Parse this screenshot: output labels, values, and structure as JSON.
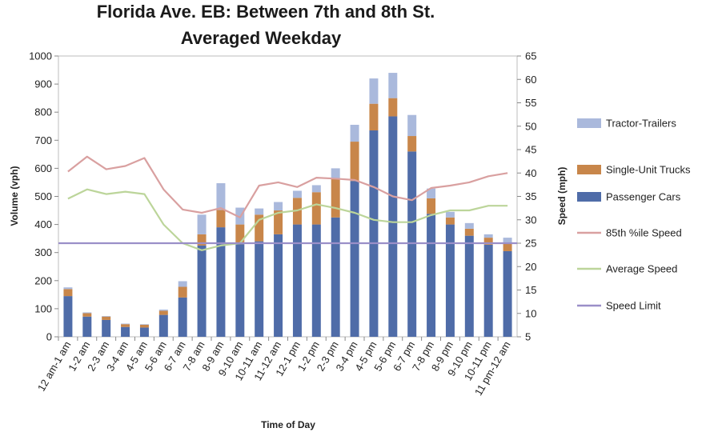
{
  "chart_data": {
    "type": "bar",
    "title_line1": "Florida Ave. EB: Between 7th and 8th St.",
    "title_line2": "Averaged Weekday",
    "xlabel": "Time of Day",
    "ylabel": "Volume (vph)",
    "y2label": "Speed (mph)",
    "ylim": [
      0,
      1000
    ],
    "y_ticks": [
      "0",
      "100",
      "200",
      "300",
      "400",
      "500",
      "600",
      "700",
      "800",
      "900",
      "1000"
    ],
    "y2lim": [
      5,
      65
    ],
    "y2_ticks": [
      "5",
      "10",
      "15",
      "20",
      "25",
      "30",
      "35",
      "40",
      "45",
      "50",
      "55",
      "60",
      "65"
    ],
    "grid": false,
    "legend_position": "right",
    "categories": [
      "12 am-1 am",
      "1-2 am",
      "2-3 am",
      "3-4 am",
      "4-5 am",
      "5-6 am",
      "6-7 am",
      "7-8 am",
      "8-9 am",
      "9-10 am",
      "10-11 am",
      "11-12 am",
      "12-1 pm",
      "1-2 pm",
      "2-3 pm",
      "3-4 pm",
      "4-5 pm",
      "5-6 pm",
      "6-7 pm",
      "7-8 pm",
      "8-9 pm",
      "9-10 pm",
      "10-11 pm",
      "11 pm-12 am"
    ],
    "series": [
      {
        "name": "Tractor-Trailers",
        "kind": "stack",
        "color": "#aab9dc",
        "values": [
          6,
          3,
          2,
          2,
          2,
          4,
          20,
          70,
          95,
          60,
          22,
          30,
          25,
          25,
          35,
          60,
          90,
          90,
          75,
          35,
          20,
          20,
          12,
          18
        ]
      },
      {
        "name": "Single-Unit Trucks",
        "kind": "stack",
        "color": "#c8864a",
        "values": [
          25,
          12,
          12,
          10,
          10,
          15,
          38,
          40,
          62,
          70,
          95,
          85,
          95,
          115,
          140,
          140,
          95,
          65,
          55,
          55,
          25,
          25,
          25,
          30
        ]
      },
      {
        "name": "Passenger Cars",
        "kind": "stack",
        "color": "#4f6ca8",
        "values": [
          145,
          72,
          60,
          35,
          33,
          78,
          140,
          325,
          390,
          330,
          340,
          365,
          400,
          400,
          425,
          555,
          735,
          785,
          660,
          438,
          400,
          360,
          328,
          305
        ]
      },
      {
        "name": "85th %ile Speed",
        "kind": "line",
        "color": "#d9a0a0",
        "values": [
          40.3,
          43.5,
          40.8,
          41.5,
          43.2,
          36.5,
          32.2,
          31.5,
          32.5,
          30.5,
          37.3,
          38.0,
          37.0,
          39.0,
          38.8,
          38.5,
          37.0,
          35.0,
          34.2,
          36.8,
          37.3,
          38.0,
          39.3,
          40.0
        ]
      },
      {
        "name": "Average Speed",
        "kind": "line",
        "color": "#bcd59a",
        "values": [
          34.5,
          36.5,
          35.5,
          36.0,
          35.5,
          29.0,
          25.0,
          23.5,
          24.5,
          25.0,
          30.0,
          31.5,
          32.0,
          33.3,
          32.5,
          31.5,
          30.0,
          29.5,
          29.5,
          31.0,
          32.0,
          32.0,
          33.0,
          33.0
        ]
      },
      {
        "name": "Speed Limit",
        "kind": "line",
        "color": "#9a8fc8",
        "values": [
          25,
          25,
          25,
          25,
          25,
          25,
          25,
          25,
          25,
          25,
          25,
          25,
          25,
          25,
          25,
          25,
          25,
          25,
          25,
          25,
          25,
          25,
          25,
          25
        ]
      }
    ]
  }
}
